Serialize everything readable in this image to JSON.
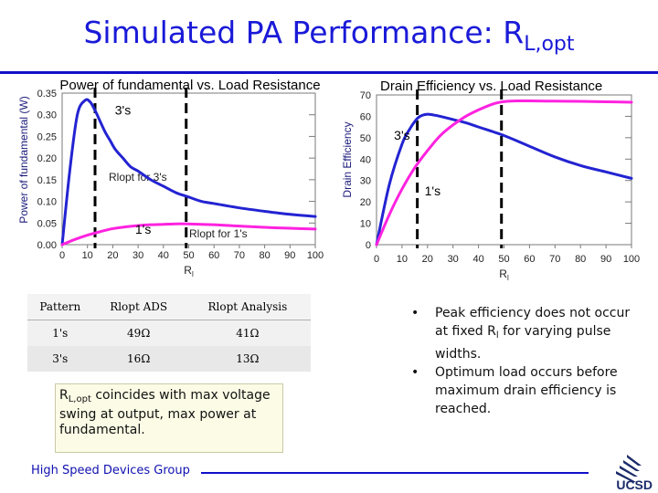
{
  "slide": {
    "title_main": "Simulated PA Performance: R",
    "title_sub": "L,opt"
  },
  "colors": {
    "title": "#1a1ad8",
    "curve_1s": "#ff22e0",
    "curve_3s": "#2323d2",
    "marker": "#000000"
  },
  "chart_data": [
    {
      "type": "line",
      "title": "Power of fundamental vs. Load Resistance",
      "ylabel": "Power of fundamental (W)",
      "xlabel": "Rl",
      "xlim": [
        0,
        100
      ],
      "ylim": [
        0,
        0.35
      ],
      "x_ticks": [
        0,
        10,
        20,
        30,
        40,
        50,
        60,
        70,
        80,
        90,
        100
      ],
      "y_ticks": [
        0,
        0.05,
        0.1,
        0.15,
        0.2,
        0.25,
        0.3,
        0.35
      ],
      "y_tick_labels": [
        "0.00",
        "0.05",
        "0.10",
        "0.15",
        "0.20",
        "0.25",
        "0.30",
        "0.35"
      ],
      "series": [
        {
          "name": "3's",
          "color": "#2323d2",
          "x": [
            0,
            3,
            6,
            9,
            11,
            13,
            15,
            17,
            19,
            21,
            24,
            27,
            30,
            35,
            40,
            45,
            50,
            55,
            60,
            70,
            80,
            90,
            100
          ],
          "y": [
            0,
            0.17,
            0.3,
            0.333,
            0.33,
            0.31,
            0.285,
            0.26,
            0.24,
            0.22,
            0.2,
            0.18,
            0.17,
            0.15,
            0.135,
            0.12,
            0.11,
            0.1,
            0.095,
            0.085,
            0.077,
            0.07,
            0.065
          ]
        },
        {
          "name": "1's",
          "color": "#ff22e0",
          "x": [
            0,
            5,
            10,
            15,
            20,
            25,
            30,
            35,
            40,
            45,
            49,
            55,
            60,
            70,
            80,
            90,
            100
          ],
          "y": [
            0,
            0.012,
            0.022,
            0.03,
            0.037,
            0.041,
            0.044,
            0.046,
            0.047,
            0.048,
            0.048,
            0.047,
            0.046,
            0.043,
            0.04,
            0.038,
            0.036
          ]
        }
      ],
      "markers": [
        {
          "x": 13,
          "label": "Rlopt for 3's"
        },
        {
          "x": 49,
          "label": "Rlopt for 1's"
        }
      ],
      "annotations": [
        {
          "text": "3's",
          "x": 24,
          "y": 0.3
        },
        {
          "text": "1's",
          "x": 32,
          "y": 0.025
        }
      ]
    },
    {
      "type": "line",
      "title": "Drain Efficiency vs. Load Resistance",
      "ylabel": "Drain Efficiency",
      "xlabel": "Rl",
      "xlim": [
        0,
        100
      ],
      "ylim": [
        0,
        70
      ],
      "x_ticks": [
        0,
        10,
        20,
        30,
        40,
        50,
        60,
        70,
        80,
        90,
        100
      ],
      "y_ticks": [
        0,
        10,
        20,
        30,
        40,
        50,
        60,
        70
      ],
      "y_tick_labels": [
        "0",
        "10",
        "20",
        "30",
        "40",
        "50",
        "60",
        "70"
      ],
      "series": [
        {
          "name": "3's",
          "color": "#2323d2",
          "x": [
            0,
            5,
            10,
            13,
            16,
            18,
            20,
            22,
            25,
            30,
            35,
            40,
            50,
            60,
            70,
            80,
            90,
            100
          ],
          "y": [
            0,
            28,
            47,
            54,
            59,
            60.5,
            61,
            60.7,
            60,
            58.5,
            57,
            55,
            51,
            46,
            41,
            37,
            34,
            31
          ]
        },
        {
          "name": "1's",
          "color": "#ff22e0",
          "x": [
            0,
            5,
            10,
            15,
            20,
            25,
            30,
            35,
            40,
            45,
            48,
            51,
            55,
            60,
            70,
            80,
            90,
            100
          ],
          "y": [
            0,
            14,
            26,
            36,
            44,
            51,
            56,
            60,
            63,
            65.5,
            66.5,
            67,
            67.2,
            67.2,
            67.1,
            67,
            66.8,
            66.6
          ]
        }
      ],
      "markers": [
        {
          "x": 16
        },
        {
          "x": 49
        }
      ],
      "annotations": [
        {
          "text": "3's",
          "x": 10,
          "y": 49
        },
        {
          "text": "1's",
          "x": 22,
          "y": 23
        }
      ]
    }
  ],
  "table": {
    "headers": [
      "Pattern",
      "Rlopt ADS",
      "Rlopt Analysis"
    ],
    "rows": [
      [
        "1's",
        "49Ω",
        "41Ω"
      ],
      [
        "3's",
        "16Ω",
        "13Ω"
      ]
    ]
  },
  "note": {
    "r": "R",
    "r_sub": "L,opt",
    "text": " coincides with max voltage swing at output, max power at fundamental."
  },
  "bullets": [
    {
      "dot": "•",
      "before": "Peak efficiency does not occur at fixed R",
      "sub": "l",
      "after": " for varying pulse widths."
    },
    {
      "dot": "•",
      "before": "Optimum load occurs before maximum drain efficiency is reached.",
      "sub": "",
      "after": ""
    }
  ],
  "footer": {
    "group": "High Speed Devices Group",
    "logo_text": "UCSD"
  }
}
